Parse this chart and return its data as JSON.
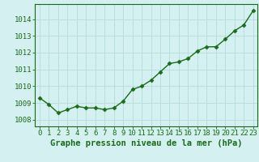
{
  "x": [
    0,
    1,
    2,
    3,
    4,
    5,
    6,
    7,
    8,
    9,
    10,
    11,
    12,
    13,
    14,
    15,
    16,
    17,
    18,
    19,
    20,
    21,
    22,
    23
  ],
  "y": [
    1009.3,
    1008.9,
    1008.4,
    1008.6,
    1008.8,
    1008.7,
    1008.7,
    1008.6,
    1008.7,
    1009.1,
    1009.8,
    1010.0,
    1010.35,
    1010.85,
    1011.35,
    1011.45,
    1011.65,
    1012.1,
    1012.35,
    1012.35,
    1012.8,
    1013.3,
    1013.65,
    1014.5
  ],
  "line_color": "#1a6b1a",
  "marker": "D",
  "marker_size": 2.5,
  "bg_color": "#d4f0f0",
  "grid_color": "#b8dede",
  "xlabel": "Graphe pression niveau de la mer (hPa)",
  "xlabel_fontsize": 7.5,
  "yticks": [
    1008,
    1009,
    1010,
    1011,
    1012,
    1013,
    1014
  ],
  "ylim": [
    1007.6,
    1014.9
  ],
  "xlim": [
    -0.5,
    23.5
  ],
  "tick_color": "#1a6b1a",
  "tick_fontsize": 6.5,
  "spine_color": "#1a6b1a",
  "linewidth": 1.0
}
